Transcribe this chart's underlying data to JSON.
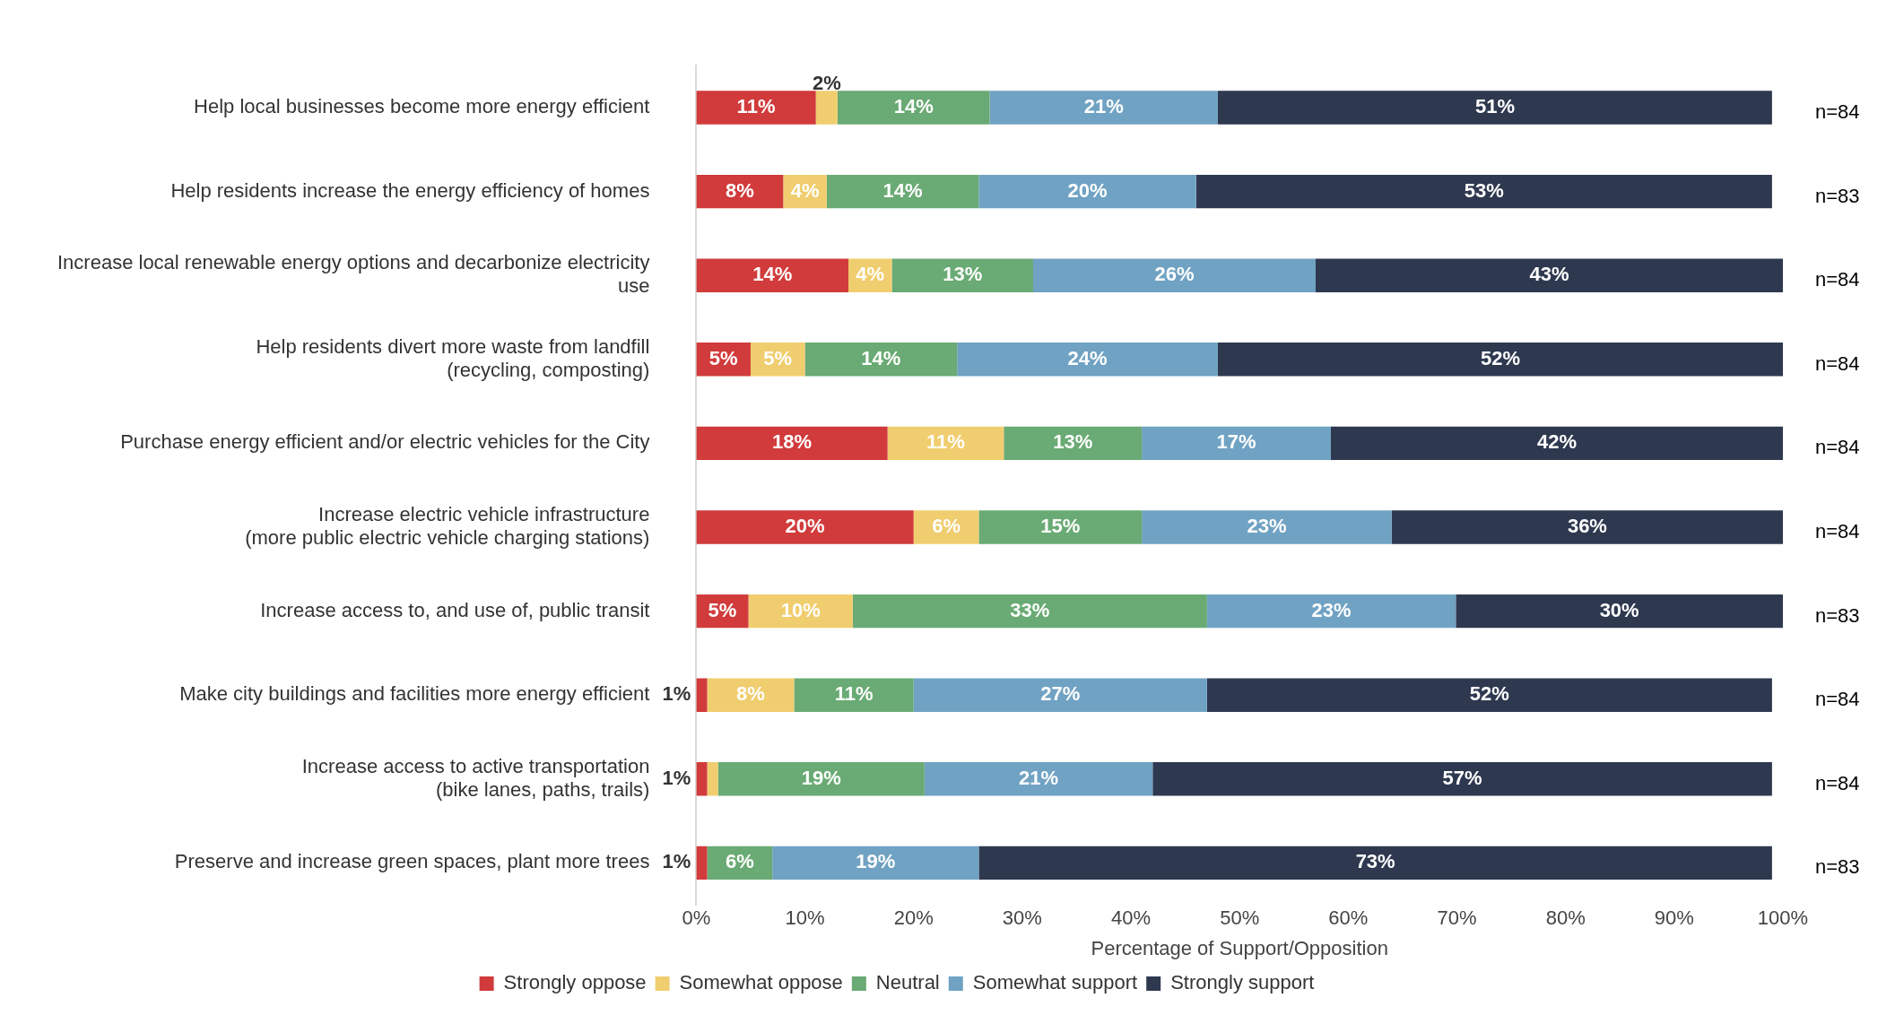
{
  "chart_data": {
    "type": "bar",
    "orientation": "horizontal",
    "stacked": true,
    "xlabel": "Percentage of Support/Opposition",
    "categories": [
      "Help local businesses become more energy efficient",
      "Help residents increase the energy efficiency of homes",
      "Increase local renewable energy options and decarbonize electricity\nuse",
      "Help residents divert more waste from landfill\n(recycling, composting)",
      "Purchase energy efficient and/or electric vehicles for the City",
      "Increase electric vehicle infrastructure\n(more public electric vehicle charging stations)",
      "Increase access to, and use of, public transit",
      "Make city buildings and facilities more energy efficient",
      "Increase access to active transportation\n(bike lanes, paths, trails)",
      "Preserve and increase green spaces, plant more trees"
    ],
    "series": [
      {
        "name": "Strongly oppose",
        "color": "#d13b3b",
        "values": [
          11,
          8,
          14,
          5,
          17.6,
          20,
          4.8,
          1,
          1,
          1
        ],
        "value_labels": [
          "11%",
          "8%",
          "14%",
          "5%",
          "18%",
          "20%",
          "5%",
          "1%",
          "1%",
          "1%"
        ]
      },
      {
        "name": "Somewhat oppose",
        "color": "#f0cd6e",
        "values": [
          2,
          4,
          4,
          5,
          10.7,
          6,
          9.6,
          8,
          1,
          null
        ],
        "value_labels": [
          "2%",
          "4%",
          "4%",
          "5%",
          "11%",
          "6%",
          "10%",
          "8%",
          null,
          null
        ]
      },
      {
        "name": "Neutral",
        "color": "#6aaa74",
        "values": [
          14,
          14,
          13,
          14,
          12.7,
          15,
          32.6,
          11,
          19,
          6
        ],
        "value_labels": [
          "14%",
          "14%",
          "13%",
          "14%",
          "13%",
          "15%",
          "33%",
          "11%",
          "19%",
          "6%"
        ]
      },
      {
        "name": "Somewhat support",
        "color": "#70a2c3",
        "values": [
          21,
          20,
          26,
          24,
          17.4,
          23,
          22.9,
          27,
          21,
          19
        ],
        "value_labels": [
          "21%",
          "20%",
          "26%",
          "24%",
          "17%",
          "23%",
          "23%",
          "27%",
          "21%",
          "19%"
        ]
      },
      {
        "name": "Strongly support",
        "color": "#2e3950",
        "values": [
          51,
          53,
          43,
          52,
          41.6,
          36,
          30.1,
          52,
          57,
          73
        ],
        "value_labels": [
          "51%",
          "53%",
          "43%",
          "52%",
          "42%",
          "36%",
          "30%",
          "52%",
          "57%",
          "73%"
        ]
      }
    ],
    "xlim": [
      0,
      100
    ],
    "xticks": [
      {
        "value": 0,
        "label": "0%"
      },
      {
        "value": 10,
        "label": "10%"
      },
      {
        "value": 20,
        "label": "20%"
      },
      {
        "value": 30,
        "label": "30%"
      },
      {
        "value": 40,
        "label": "40%"
      },
      {
        "value": 50,
        "label": "50%"
      },
      {
        "value": 60,
        "label": "60%"
      },
      {
        "value": 70,
        "label": "70%"
      },
      {
        "value": 80,
        "label": "80%"
      },
      {
        "value": 90,
        "label": "90%"
      },
      {
        "value": 100,
        "label": "100%"
      }
    ],
    "legend": "bottom",
    "annotations": [
      "n=84",
      "n=83",
      "n=84",
      "n=84",
      "n=84",
      "n=84",
      "n=83",
      "n=84",
      "n=84",
      "n=83"
    ]
  }
}
